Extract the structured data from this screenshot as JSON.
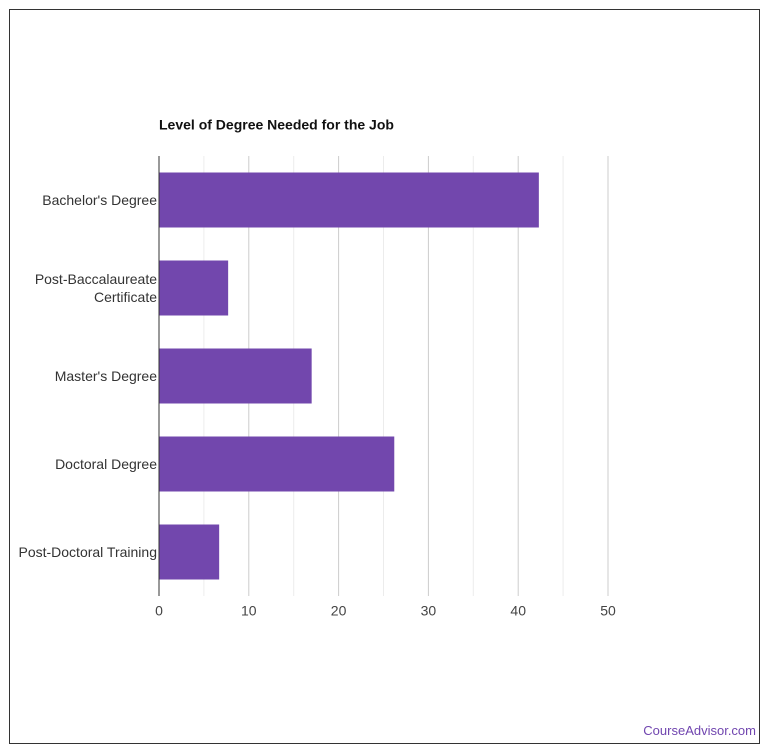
{
  "chart_data": {
    "type": "bar",
    "orientation": "horizontal",
    "title": "Level of Degree Needed for the Job",
    "categories": [
      "Bachelor's Degree",
      "Post-Baccalaureate Certificate",
      "Master's Degree",
      "Doctoral Degree",
      "Post-Doctoral Training"
    ],
    "values": [
      42.3,
      7.7,
      17.0,
      26.2,
      6.7
    ],
    "color": "#7247ad",
    "xlim": [
      0,
      50
    ],
    "xticks": [
      0,
      10,
      20,
      30,
      40,
      50
    ],
    "xminorticks": [
      5,
      15,
      25,
      35,
      45
    ],
    "grid": true
  },
  "footer": {
    "credit": "CourseAdvisor.com"
  }
}
